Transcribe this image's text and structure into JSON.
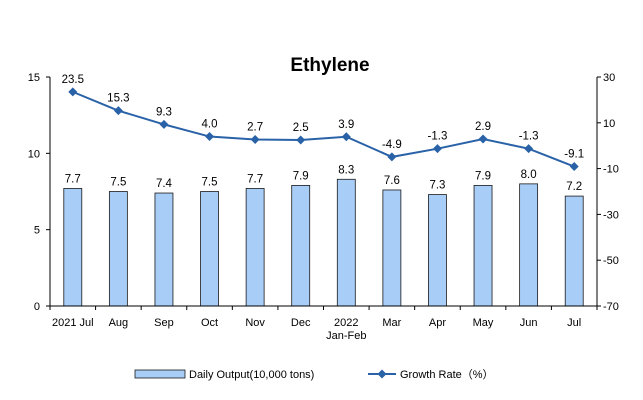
{
  "chart_data": {
    "type": "bar+line",
    "title": "Ethylene",
    "categories": [
      [
        "2021 Jul"
      ],
      [
        "Aug"
      ],
      [
        "Sep"
      ],
      [
        "Oct"
      ],
      [
        "Nov"
      ],
      [
        "Dec"
      ],
      [
        "2022",
        "Jan-Feb"
      ],
      [
        "Mar"
      ],
      [
        "Apr"
      ],
      [
        "May"
      ],
      [
        "Jun"
      ],
      [
        "Jul"
      ]
    ],
    "series": [
      {
        "name": "Daily Output(10,000 tons)",
        "type": "bar",
        "axis": "left",
        "color": "#a8cdf7",
        "values": [
          7.7,
          7.5,
          7.4,
          7.5,
          7.7,
          7.9,
          8.3,
          7.6,
          7.3,
          7.9,
          8.0,
          7.2
        ]
      },
      {
        "name": "Growth Rate（%）",
        "type": "line",
        "axis": "right",
        "color": "#2a62a8",
        "values": [
          23.5,
          15.3,
          9.3,
          4.0,
          2.7,
          2.5,
          3.9,
          -4.9,
          -1.3,
          2.9,
          -1.3,
          -9.1
        ]
      }
    ],
    "y_left": {
      "range": [
        0,
        15
      ],
      "ticks": [
        0,
        5,
        10,
        15
      ]
    },
    "y_right": {
      "range": [
        -70,
        30
      ],
      "ticks": [
        -70,
        -50,
        -30,
        -10,
        10,
        30
      ]
    },
    "grid": false,
    "legend": "bottom"
  }
}
